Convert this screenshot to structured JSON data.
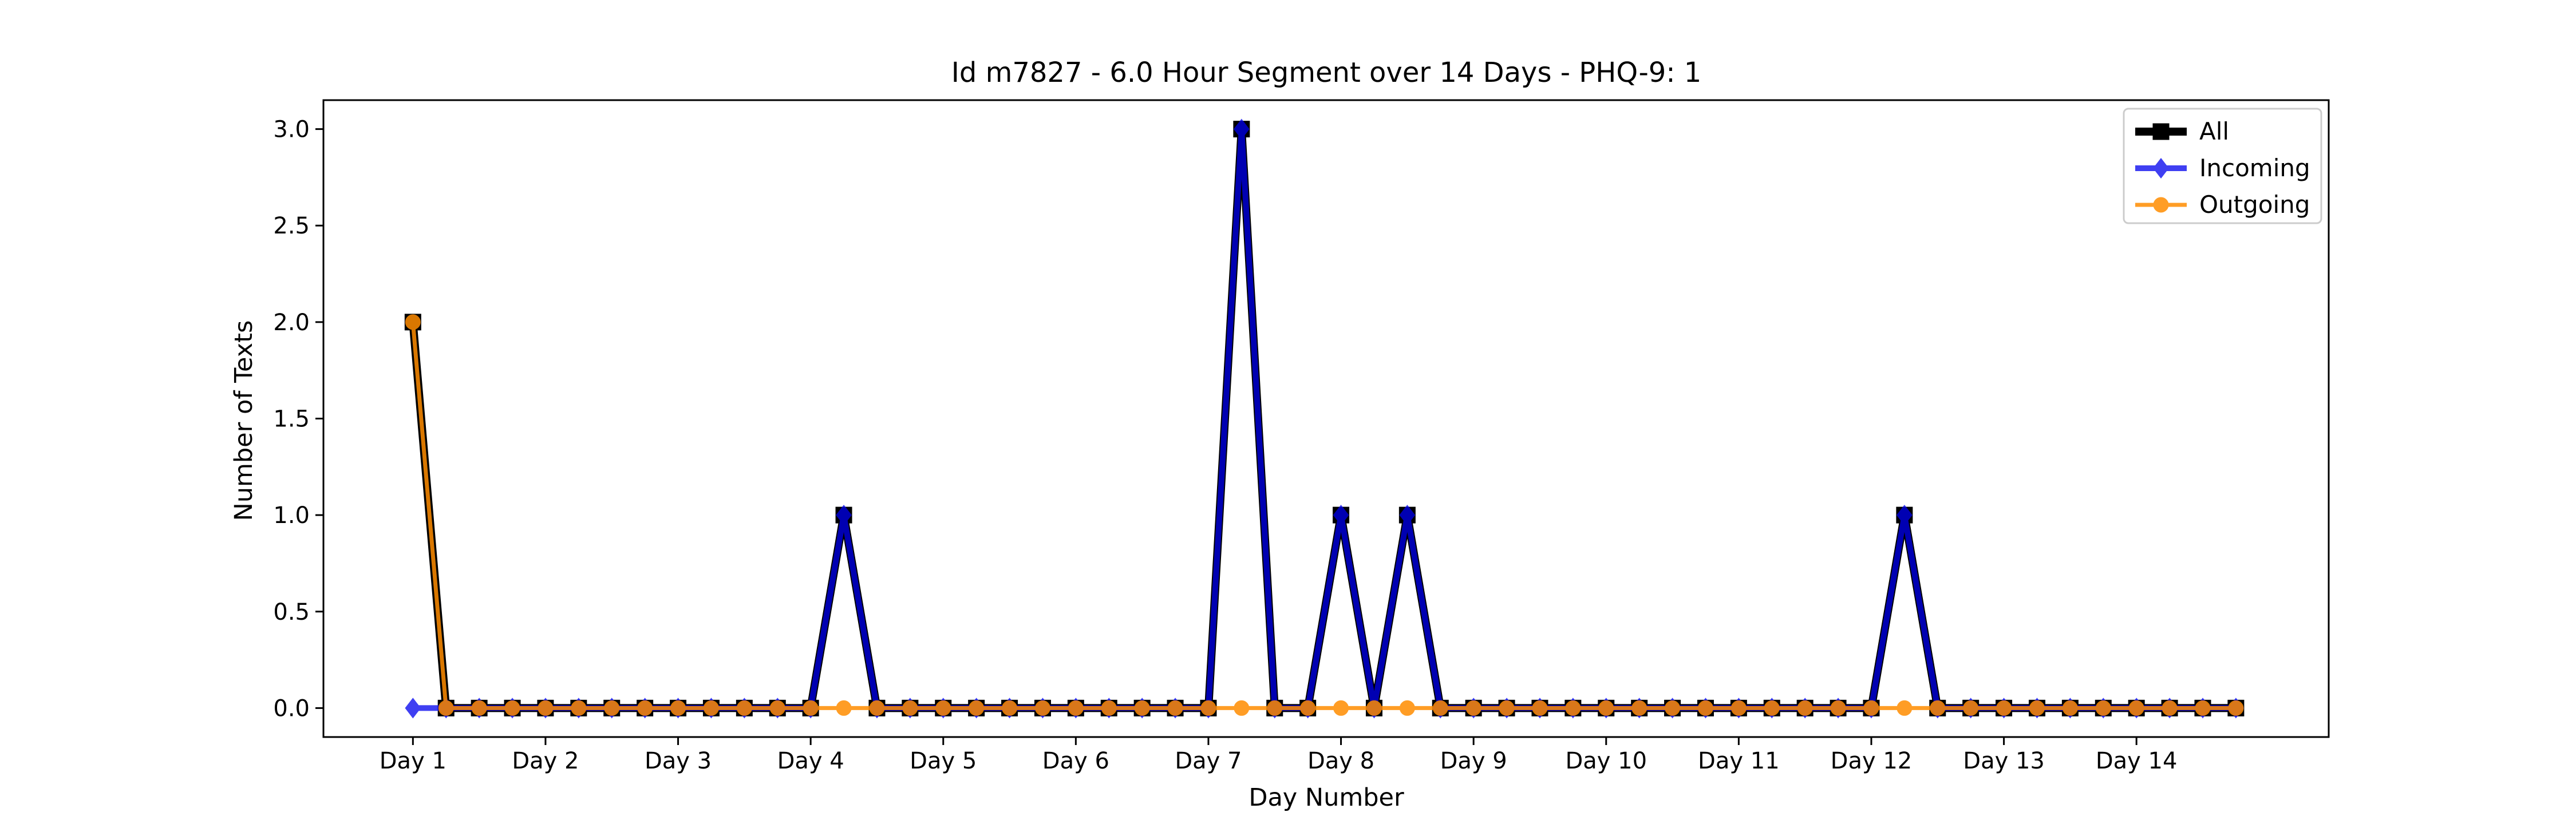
{
  "chart_data": {
    "type": "line",
    "title": "Id m7827 - 6.0 Hour Segment over 14 Days - PHQ-9: 1",
    "xlabel": "Day Number",
    "ylabel": "Number of Texts",
    "ylim": [
      -0.15,
      3.15
    ],
    "yticks": [
      "0.0",
      "0.5",
      "1.0",
      "1.5",
      "2.0",
      "2.5",
      "3.0"
    ],
    "ytick_values": [
      0,
      0.5,
      1,
      1.5,
      2,
      2.5,
      3
    ],
    "xticks": [
      "Day 1",
      "Day 2",
      "Day 3",
      "Day 4",
      "Day 5",
      "Day 6",
      "Day 7",
      "Day 8",
      "Day 9",
      "Day 10",
      "Day 11",
      "Day 12",
      "Day 13",
      "Day 14"
    ],
    "xtick_values": [
      0,
      4,
      8,
      12,
      16,
      20,
      24,
      28,
      32,
      36,
      40,
      44,
      48,
      52
    ],
    "xlim": [
      -2.7,
      57.8
    ],
    "grid": false,
    "legend_position": "upper right",
    "x": [
      0,
      1,
      2,
      3,
      4,
      5,
      6,
      7,
      8,
      9,
      10,
      11,
      12,
      13,
      14,
      15,
      16,
      17,
      18,
      19,
      20,
      21,
      22,
      23,
      24,
      25,
      26,
      27,
      28,
      29,
      30,
      31,
      32,
      33,
      34,
      35,
      36,
      37,
      38,
      39,
      40,
      41,
      42,
      43,
      44,
      45,
      46,
      47,
      48,
      49,
      50,
      51,
      52,
      53,
      54,
      55
    ],
    "series": [
      {
        "name": "All",
        "color": "#000000",
        "marker": "square",
        "values": [
          2,
          0,
          0,
          0,
          0,
          0,
          0,
          0,
          0,
          0,
          0,
          0,
          0,
          1,
          0,
          0,
          0,
          0,
          0,
          0,
          0,
          0,
          0,
          0,
          0,
          3,
          0,
          0,
          1,
          0,
          1,
          0,
          0,
          0,
          0,
          0,
          0,
          0,
          0,
          0,
          0,
          0,
          0,
          0,
          0,
          1,
          0,
          0,
          0,
          0,
          0,
          0,
          0,
          0,
          0,
          0
        ]
      },
      {
        "name": "Incoming",
        "color": "#0000ee",
        "marker": "diamond",
        "values": [
          0,
          0,
          0,
          0,
          0,
          0,
          0,
          0,
          0,
          0,
          0,
          0,
          0,
          1,
          0,
          0,
          0,
          0,
          0,
          0,
          0,
          0,
          0,
          0,
          0,
          3,
          0,
          0,
          1,
          0,
          1,
          0,
          0,
          0,
          0,
          0,
          0,
          0,
          0,
          0,
          0,
          0,
          0,
          0,
          0,
          1,
          0,
          0,
          0,
          0,
          0,
          0,
          0,
          0,
          0,
          0
        ]
      },
      {
        "name": "Outgoing",
        "color": "#ff8c00",
        "marker": "circle",
        "values": [
          2,
          0,
          0,
          0,
          0,
          0,
          0,
          0,
          0,
          0,
          0,
          0,
          0,
          0,
          0,
          0,
          0,
          0,
          0,
          0,
          0,
          0,
          0,
          0,
          0,
          0,
          0,
          0,
          0,
          0,
          0,
          0,
          0,
          0,
          0,
          0,
          0,
          0,
          0,
          0,
          0,
          0,
          0,
          0,
          0,
          0,
          0,
          0,
          0,
          0,
          0,
          0,
          0,
          0,
          0,
          0
        ]
      }
    ]
  }
}
